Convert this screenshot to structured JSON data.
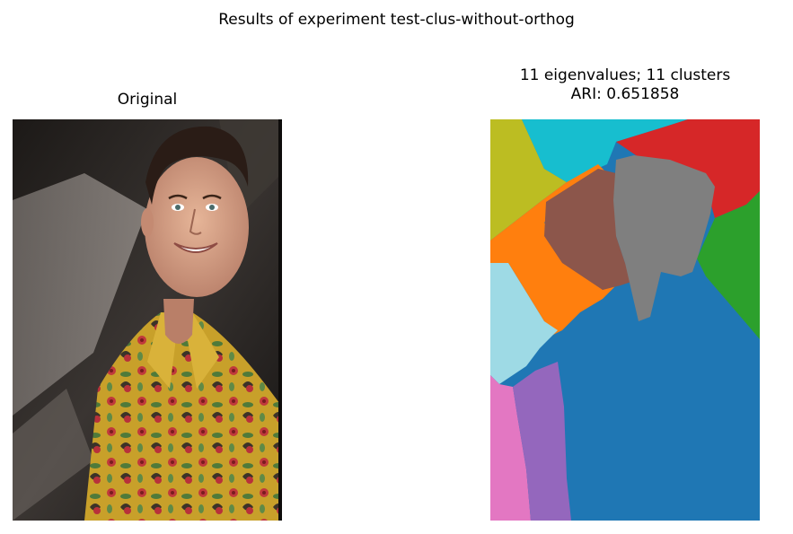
{
  "figure": {
    "suptitle": "Results of experiment test-clus-without-orthog",
    "panels": [
      {
        "title": "Original"
      },
      {
        "title_line1": "11 eigenvalues; 11 clusters",
        "title_line2": "ARI: 0.651858"
      }
    ]
  },
  "colors": {
    "cluster_palette": [
      "#1f77b4",
      "#ff7f0e",
      "#2ca02c",
      "#d62728",
      "#9467bd",
      "#8c564b",
      "#e377c2",
      "#7f7f7f",
      "#bcbd22",
      "#17becf",
      "#9edae5"
    ],
    "photo_background": "#2e2a27",
    "shirt": "#c9a22a"
  }
}
